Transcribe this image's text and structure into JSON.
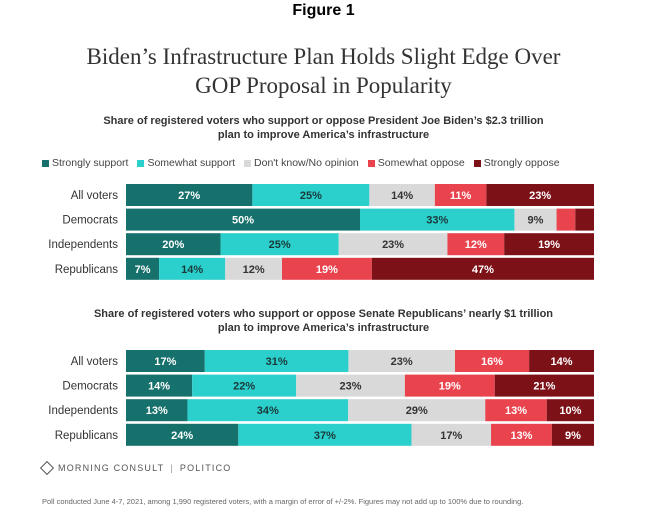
{
  "figure_label": "Figure 1",
  "title_line1": "Biden’s Infrastructure Plan Holds Slight Edge Over",
  "title_line2": "GOP Proposal in Popularity",
  "footer": {
    "logo": "MORNING CONSULT",
    "partner": "POLITICO",
    "note": "Poll conducted June 4-7, 2021, among 1,990 registered voters, with a margin of error of +/-2%. Figures may not add up to 100% due to rounding."
  },
  "colors": {
    "strongly_support": "#16706b",
    "somewhat_support": "#2bcfcb",
    "dont_know": "#d9d9d9",
    "somewhat_oppose": "#e9434e",
    "strongly_oppose": "#7d1118"
  },
  "chart_data": [
    {
      "type": "bar",
      "orientation": "horizontal",
      "stacked": true,
      "title": "Share of registered voters who support or oppose President Joe Biden’s $2.3 trillion plan to improve America’s infrastructure",
      "title_lines": [
        "Share of registered voters who support or oppose President Joe Biden’s $2.3 trillion",
        "plan to improve America’s infrastructure"
      ],
      "legend_position": "top",
      "categories": [
        "All voters",
        "Democrats",
        "Independents",
        "Republicans"
      ],
      "series": [
        {
          "name": "Strongly support",
          "values": [
            27,
            50,
            20,
            7
          ]
        },
        {
          "name": "Somewhat support",
          "values": [
            25,
            33,
            25,
            14
          ]
        },
        {
          "name": "Don't know/No opinion",
          "values": [
            14,
            9,
            23,
            12
          ]
        },
        {
          "name": "Somewhat oppose",
          "values": [
            11,
            4,
            12,
            19
          ]
        },
        {
          "name": "Strongly oppose",
          "values": [
            23,
            4,
            19,
            47
          ]
        }
      ],
      "labels_shown": [
        [
          "27%",
          "25%",
          "14%",
          "11%",
          "23%"
        ],
        [
          "50%",
          "33%",
          "9%",
          "",
          ""
        ],
        [
          "20%",
          "25%",
          "23%",
          "12%",
          "19%"
        ],
        [
          "7%",
          "14%",
          "12%",
          "19%",
          "47%"
        ]
      ]
    },
    {
      "type": "bar",
      "orientation": "horizontal",
      "stacked": true,
      "title": "Share of registered voters who support or oppose Senate Republicans’ nearly $1 trillion plan to improve America’s infrastructure",
      "title_lines": [
        "Share of registered voters who support or oppose Senate Republicans’ nearly $1 trillion",
        "plan to improve America’s infrastructure"
      ],
      "categories": [
        "All voters",
        "Democrats",
        "Independents",
        "Republicans"
      ],
      "series": [
        {
          "name": "Strongly support",
          "values": [
            17,
            14,
            13,
            24
          ]
        },
        {
          "name": "Somewhat support",
          "values": [
            31,
            22,
            34,
            37
          ]
        },
        {
          "name": "Don't know/No opinion",
          "values": [
            23,
            23,
            29,
            17
          ]
        },
        {
          "name": "Somewhat oppose",
          "values": [
            16,
            19,
            13,
            13
          ]
        },
        {
          "name": "Strongly oppose",
          "values": [
            14,
            21,
            10,
            9
          ]
        }
      ],
      "labels_shown": [
        [
          "17%",
          "31%",
          "23%",
          "16%",
          "14%"
        ],
        [
          "14%",
          "22%",
          "23%",
          "19%",
          "21%"
        ],
        [
          "13%",
          "34%",
          "29%",
          "13%",
          "10%"
        ],
        [
          "24%",
          "37%",
          "17%",
          "13%",
          "9%"
        ]
      ]
    }
  ]
}
